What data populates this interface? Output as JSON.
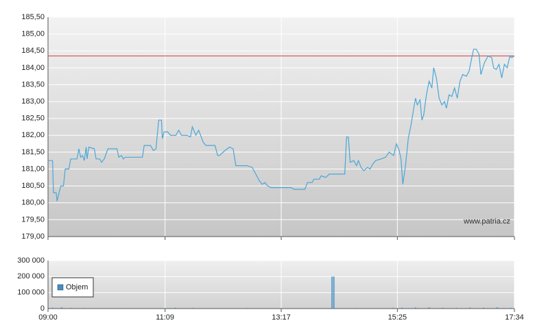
{
  "chart_data": [
    {
      "type": "line",
      "x": [
        "09:00",
        "09:05",
        "09:06",
        "09:09",
        "09:10",
        "09:14",
        "09:17",
        "09:19",
        "09:23",
        "09:25",
        "09:32",
        "09:34",
        "09:36",
        "09:38",
        "09:40",
        "09:42",
        "09:43",
        "09:45",
        "09:51",
        "09:53",
        "09:57",
        "09:59",
        "10:02",
        "10:06",
        "10:16",
        "10:18",
        "10:21",
        "10:23",
        "10:25",
        "10:44",
        "10:46",
        "10:53",
        "10:56",
        "10:59",
        "11:02",
        "11:05",
        "11:06",
        "11:08",
        "11:12",
        "11:15",
        "11:21",
        "11:24",
        "11:27",
        "11:33",
        "11:37",
        "11:39",
        "11:43",
        "11:46",
        "11:51",
        "11:54",
        "12:04",
        "12:07",
        "12:09",
        "12:15",
        "12:20",
        "12:24",
        "12:27",
        "12:39",
        "12:45",
        "12:50",
        "12:53",
        "12:56",
        "12:59",
        "13:02",
        "13:06",
        "13:28",
        "13:31",
        "13:43",
        "13:46",
        "13:51",
        "13:53",
        "13:59",
        "14:01",
        "14:06",
        "14:10",
        "14:27",
        "14:29",
        "14:31",
        "14:33",
        "14:37",
        "14:40",
        "14:42",
        "14:45",
        "14:48",
        "14:52",
        "14:55",
        "14:58",
        "15:01",
        "15:07",
        "15:12",
        "15:16",
        "15:21",
        "15:24",
        "15:27",
        "15:29",
        "15:31",
        "15:34",
        "15:37",
        "15:40",
        "15:43",
        "15:45",
        "15:47",
        "15:50",
        "15:52",
        "15:54",
        "15:57",
        "16:00",
        "16:03",
        "16:05",
        "16:08",
        "16:11",
        "16:14",
        "16:17",
        "16:19",
        "16:22",
        "16:25",
        "16:28",
        "16:31",
        "16:34",
        "16:37",
        "16:41",
        "16:44",
        "16:47",
        "16:49",
        "16:52",
        "16:55",
        "16:57",
        "17:01",
        "17:05",
        "17:09",
        "17:11",
        "17:14",
        "17:17",
        "17:20",
        "17:23",
        "17:26",
        "17:29",
        "17:31",
        "17:34"
      ],
      "series": [
        {
          "color": "#4aa6d6",
          "values": [
            181.25,
            181.25,
            180.3,
            180.3,
            180.05,
            180.5,
            180.5,
            181.0,
            181.0,
            181.3,
            181.3,
            181.6,
            181.35,
            181.4,
            181.25,
            181.65,
            181.3,
            181.65,
            181.6,
            181.3,
            181.3,
            181.2,
            181.3,
            181.6,
            181.6,
            181.35,
            181.4,
            181.3,
            181.35,
            181.35,
            181.7,
            181.7,
            181.55,
            181.6,
            182.45,
            182.45,
            181.9,
            182.1,
            182.1,
            182.0,
            182.0,
            182.15,
            182.0,
            182.0,
            181.95,
            182.25,
            182.0,
            182.15,
            181.8,
            181.7,
            181.7,
            181.4,
            181.4,
            181.55,
            181.65,
            181.6,
            181.1,
            181.1,
            181.05,
            180.8,
            180.65,
            180.55,
            180.6,
            180.5,
            180.45,
            180.45,
            180.4,
            180.4,
            180.6,
            180.6,
            180.7,
            180.7,
            180.8,
            180.75,
            180.85,
            180.85,
            181.95,
            181.95,
            181.2,
            181.25,
            181.1,
            181.25,
            181.05,
            180.95,
            181.05,
            181.0,
            181.15,
            181.25,
            181.3,
            181.35,
            181.5,
            181.4,
            181.75,
            181.55,
            181.3,
            180.55,
            181.1,
            181.9,
            182.3,
            182.8,
            183.1,
            182.9,
            183.05,
            182.45,
            182.6,
            183.2,
            183.6,
            183.4,
            184.0,
            183.7,
            183.1,
            182.9,
            183.0,
            182.8,
            183.2,
            183.15,
            183.4,
            183.1,
            183.6,
            183.8,
            183.75,
            183.9,
            184.3,
            184.55,
            184.55,
            184.4,
            183.8,
            184.15,
            184.35,
            184.3,
            184.0,
            183.95,
            184.1,
            183.7,
            184.1,
            184.0,
            184.35,
            184.3,
            184.35
          ]
        }
      ],
      "reference_line": {
        "value": 184.35,
        "color": "#d43c3c"
      },
      "xlim": [
        "09:00",
        "17:34"
      ],
      "ylim": [
        179,
        185.5
      ],
      "yticks": [
        {
          "value": 179,
          "label": "179,00"
        },
        {
          "value": 179.5,
          "label": "179,50"
        },
        {
          "value": 180,
          "label": "180,00"
        },
        {
          "value": 180.5,
          "label": "180,50"
        },
        {
          "value": 181,
          "label": "181,00"
        },
        {
          "value": 181.5,
          "label": "181,50"
        },
        {
          "value": 182,
          "label": "182,00"
        },
        {
          "value": 182.5,
          "label": "182,50"
        },
        {
          "value": 183,
          "label": "183,00"
        },
        {
          "value": 183.5,
          "label": "183,50"
        },
        {
          "value": 184,
          "label": "184,00"
        },
        {
          "value": 184.5,
          "label": "184,50"
        },
        {
          "value": 185,
          "label": "185,00"
        },
        {
          "value": 185.5,
          "label": "185,50"
        }
      ],
      "grid": true,
      "watermark": "www.patria.cz"
    },
    {
      "type": "bar",
      "x": [
        "09:05",
        "09:15",
        "09:25",
        "09:40",
        "10:20",
        "11:05",
        "11:20",
        "11:40",
        "12:10",
        "12:40",
        "13:10",
        "13:40",
        "14:13",
        "14:15",
        "14:40",
        "15:00",
        "15:20",
        "15:30",
        "15:45",
        "16:00",
        "16:15",
        "16:30",
        "16:45",
        "17:00",
        "17:15",
        "17:30"
      ],
      "series": [
        {
          "name": "Objem",
          "color": "#3f8fc8",
          "values": [
            6000,
            8000,
            5000,
            4000,
            3000,
            4000,
            6000,
            5000,
            3000,
            4000,
            3000,
            3000,
            200000,
            200000,
            4000,
            3000,
            5000,
            6000,
            7000,
            8000,
            6000,
            5000,
            7000,
            6000,
            8000,
            5000
          ]
        }
      ],
      "xlim": [
        "09:00",
        "17:34"
      ],
      "xticks": [
        "09:00",
        "11:09",
        "13:17",
        "15:25",
        "17:34"
      ],
      "ylim": [
        0,
        300000
      ],
      "yticks": [
        0,
        {
          "value": 100000,
          "label": "100 000"
        },
        {
          "value": 200000,
          "label": "200 000"
        },
        {
          "value": 300000,
          "label": "300 000"
        }
      ],
      "grid": true,
      "legend": "upper-left"
    }
  ]
}
